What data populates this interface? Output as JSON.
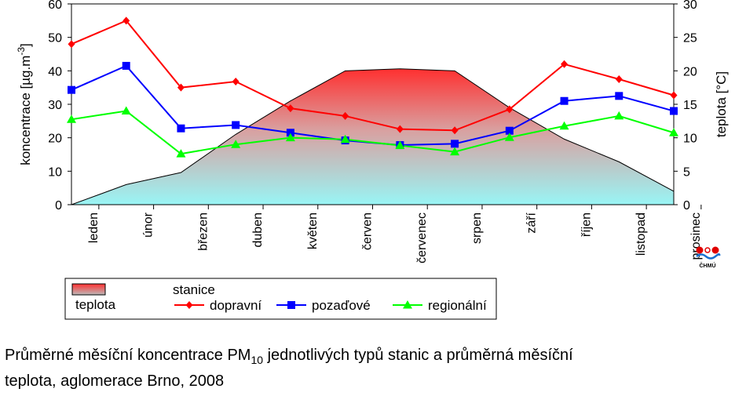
{
  "chart_data": {
    "type": "line",
    "categories": [
      "leden",
      "únor",
      "březen",
      "duben",
      "květen",
      "červen",
      "červenec",
      "srpen",
      "září",
      "říjen",
      "listopad",
      "prosinec"
    ],
    "ylabel": "koncentrace [µg.m-3]",
    "ylabel_parts": [
      "koncentrace [µg.m",
      "-3",
      "]"
    ],
    "y2label": "teplota [°C]",
    "ylim": [
      0,
      60
    ],
    "y2lim": [
      0,
      30
    ],
    "yticks": [
      0,
      10,
      20,
      30,
      40,
      50,
      60
    ],
    "y2ticks": [
      0,
      5,
      10,
      15,
      20,
      25,
      30
    ],
    "legend_group_title": "stanice",
    "temperature": {
      "name": "teplota",
      "values": [
        0,
        3,
        4.8,
        10.5,
        15.5,
        20,
        20.3,
        20,
        14.5,
        9.8,
        6.4,
        2
      ],
      "gradient_top": "#ff3030",
      "gradient_bottom": "#99f5f5"
    },
    "series": [
      {
        "name": "dopravní",
        "color": "#ff0000",
        "marker": "diamond",
        "values": [
          48,
          55,
          35,
          36.8,
          28.8,
          26.5,
          22.6,
          22.2,
          28.5,
          42,
          37.5,
          32.7
        ]
      },
      {
        "name": "pozaďové",
        "color": "#0000ff",
        "marker": "square",
        "values": [
          34.3,
          41.5,
          22.8,
          23.8,
          21.5,
          19.2,
          17.8,
          18.2,
          22.1,
          31,
          32.5,
          28
        ]
      },
      {
        "name": "regionální",
        "color": "#00ff00",
        "marker": "triangle",
        "values": [
          25.5,
          28,
          15.2,
          18,
          20,
          19.5,
          17.7,
          15.8,
          20.1,
          23.5,
          26.5,
          21.5
        ]
      }
    ]
  },
  "logo": {
    "text": "ČHMÚ"
  },
  "caption": {
    "line1_before": "Průměrné měsíční koncentrace PM",
    "line1_sub": "10",
    "line1_after": " jednotlivých typů stanic a průměrná měsíční",
    "line2": "teplota, aglomerace Brno, 2008"
  }
}
